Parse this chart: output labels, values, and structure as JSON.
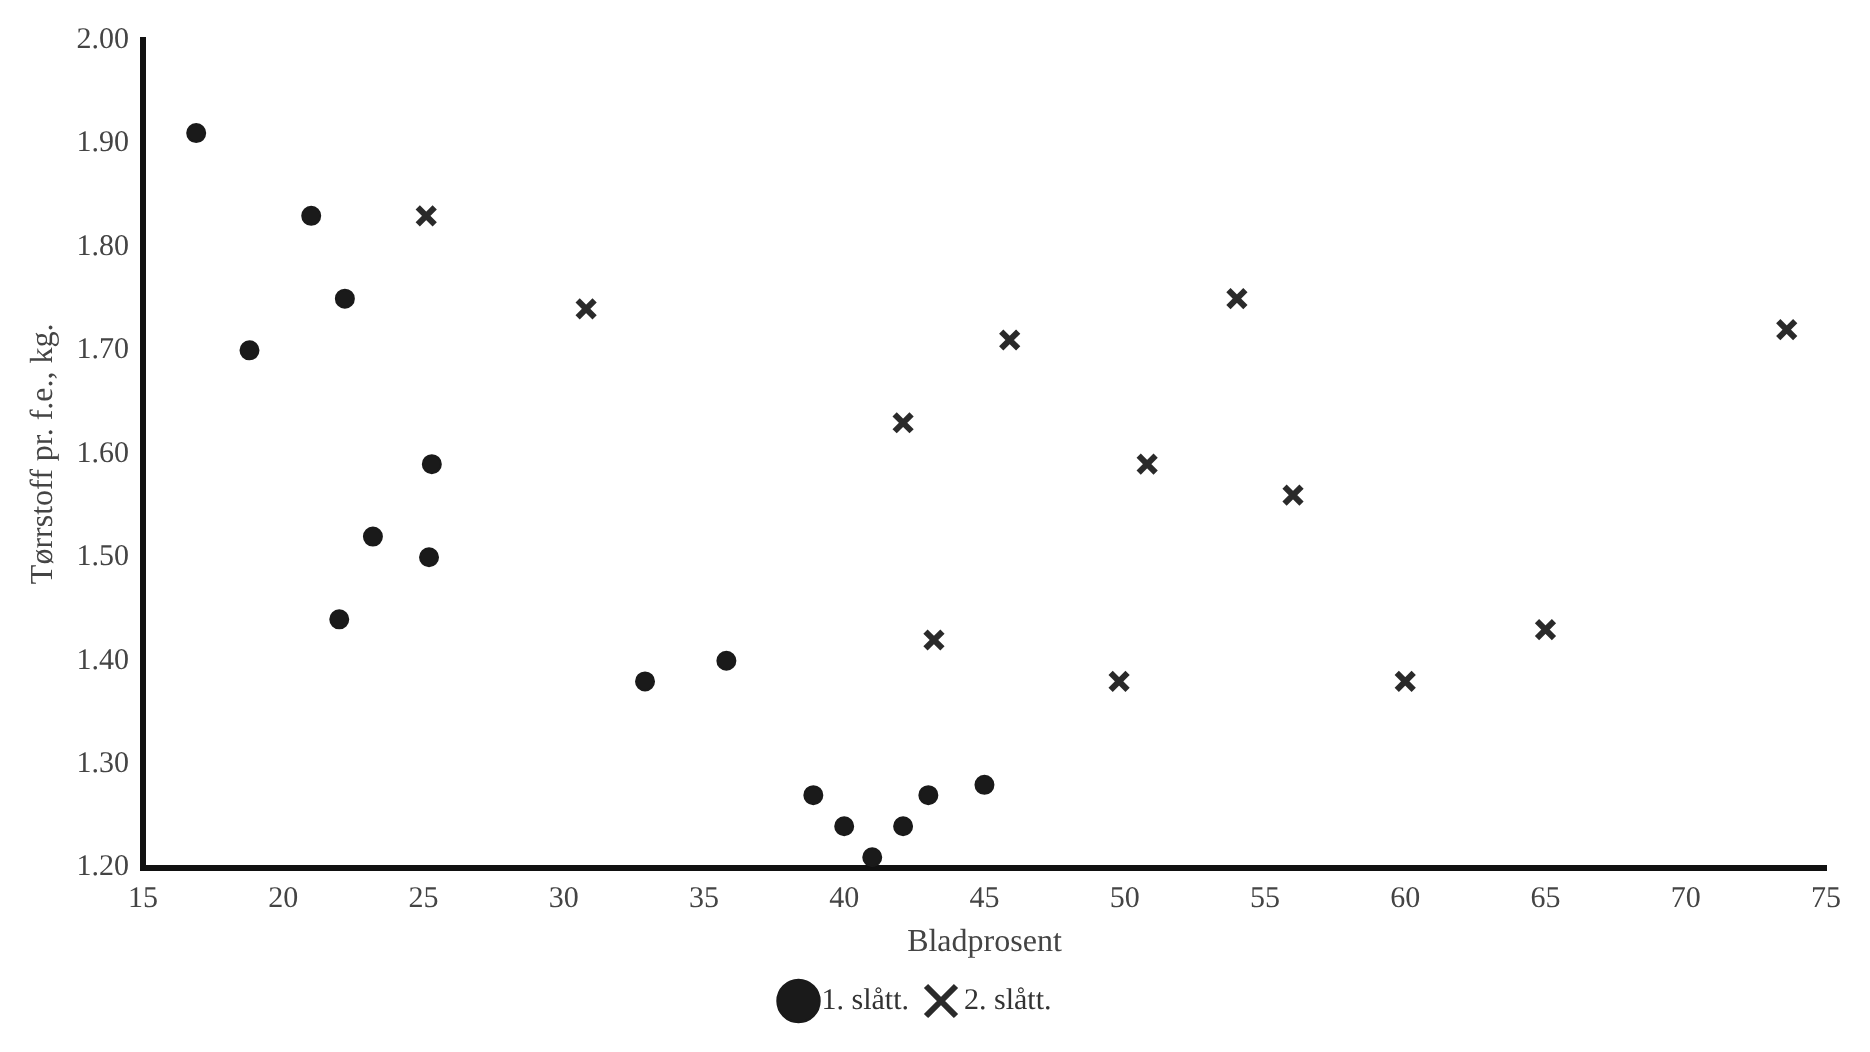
{
  "chart_data": {
    "type": "scatter",
    "xlabel": "Bladprosent",
    "ylabel": "Tørrstoff pr. f.e., kg.",
    "xlim": [
      15,
      75
    ],
    "ylim": [
      1.2,
      2.0
    ],
    "xticks": [
      15,
      20,
      25,
      30,
      35,
      40,
      45,
      50,
      55,
      60,
      65,
      70,
      75
    ],
    "yticks": [
      {
        "value": 1.2,
        "label": "1.20"
      },
      {
        "value": 1.3,
        "label": "1.30"
      },
      {
        "value": 1.4,
        "label": "1.40"
      },
      {
        "value": 1.5,
        "label": "1.50"
      },
      {
        "value": 1.6,
        "label": "1.60"
      },
      {
        "value": 1.7,
        "label": "1.70"
      },
      {
        "value": 1.8,
        "label": "1.80"
      },
      {
        "value": 1.9,
        "label": "1.90"
      },
      {
        "value": 2.0,
        "label": "2.00"
      }
    ],
    "grid": false,
    "legend": "bottom",
    "series": [
      {
        "name": "1. slått.",
        "color": "#1a1a1a",
        "marker": "circle",
        "x": [
          16.9,
          21.0,
          22.2,
          18.8,
          25.3,
          23.2,
          25.2,
          22.0,
          32.9,
          35.8,
          38.9,
          40.0,
          42.1,
          43.0,
          45.0,
          41.0
        ],
        "values": [
          1.91,
          1.83,
          1.75,
          1.7,
          1.59,
          1.52,
          1.5,
          1.44,
          1.38,
          1.4,
          1.27,
          1.24,
          1.24,
          1.27,
          1.28,
          1.21
        ]
      },
      {
        "name": "2. slått.",
        "color": "#2a2a2a",
        "marker": "cross",
        "x": [
          25.1,
          30.8,
          42.1,
          45.9,
          43.2,
          54.0,
          50.8,
          56.0,
          49.8,
          60.0,
          65.0,
          73.6
        ],
        "values": [
          1.83,
          1.74,
          1.63,
          1.71,
          1.42,
          1.75,
          1.59,
          1.56,
          1.38,
          1.38,
          1.43,
          1.72
        ]
      }
    ]
  }
}
